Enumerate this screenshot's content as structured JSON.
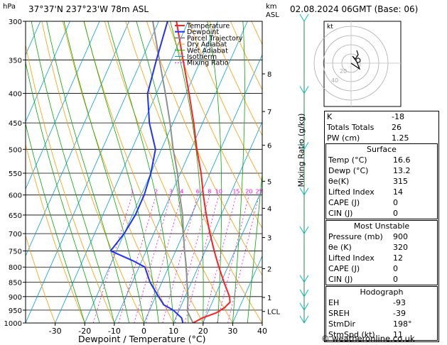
{
  "header": {
    "hpa_unit": "hPa",
    "location": "37°37'N  237°23'W  78m  ASL",
    "km_unit": "km",
    "asl_unit": "ASL",
    "datetime": "02.08.2024  06GMT  (Base: 06)"
  },
  "legend": [
    {
      "label": "Temperature",
      "color": "#ff2020"
    },
    {
      "label": "Dewpoint",
      "color": "#2030ff"
    },
    {
      "label": "Parcel Trajectory",
      "color": "#909090"
    },
    {
      "label": "Dry Adiabat",
      "color": "#ff9900"
    },
    {
      "label": "Wet Adiabat",
      "color": "#00aa00"
    },
    {
      "label": "Isotherm",
      "color": "#00a0e0"
    },
    {
      "label": "Mixing Ratio",
      "color": "#ff00ff"
    }
  ],
  "chart_data": {
    "type": "skew-t",
    "xlabel": "Dewpoint / Temperature (°C)",
    "y2label": "Mixing Ratio (g/kg)",
    "x_ticks": [
      "-30",
      "-20",
      "-10",
      "0",
      "10",
      "20",
      "30",
      "40"
    ],
    "pressure_ticks": [
      "300",
      "350",
      "400",
      "450",
      "500",
      "550",
      "600",
      "650",
      "700",
      "750",
      "800",
      "850",
      "900",
      "950",
      "1000"
    ],
    "height_km_ticks": [
      {
        "label": "8",
        "p": 370
      },
      {
        "label": "7",
        "p": 430
      },
      {
        "label": "6",
        "p": 492
      },
      {
        "label": "5",
        "p": 568
      },
      {
        "label": "4",
        "p": 633
      },
      {
        "label": "3",
        "p": 711
      },
      {
        "label": "2",
        "p": 805
      },
      {
        "label": "1",
        "p": 903
      },
      {
        "label": "LCL",
        "p": 955
      }
    ],
    "mixing_ratio_labels": [
      "1",
      "2",
      "3",
      "4",
      "6",
      "8",
      "10",
      "15",
      "20",
      "25"
    ],
    "temperature": [
      {
        "p": 1000,
        "t": 16.6
      },
      {
        "p": 980,
        "t": 19
      },
      {
        "p": 960,
        "t": 23
      },
      {
        "p": 940,
        "t": 25
      },
      {
        "p": 920,
        "t": 26
      },
      {
        "p": 900,
        "t": 25
      },
      {
        "p": 850,
        "t": 21
      },
      {
        "p": 800,
        "t": 17
      },
      {
        "p": 750,
        "t": 13
      },
      {
        "p": 700,
        "t": 9
      },
      {
        "p": 650,
        "t": 5
      },
      {
        "p": 600,
        "t": 1
      },
      {
        "p": 550,
        "t": -3
      },
      {
        "p": 500,
        "t": -8
      },
      {
        "p": 450,
        "t": -13
      },
      {
        "p": 400,
        "t": -19
      },
      {
        "p": 350,
        "t": -26
      },
      {
        "p": 300,
        "t": -34
      }
    ],
    "dewpoint": [
      {
        "p": 1000,
        "t": 13.2
      },
      {
        "p": 980,
        "t": 12
      },
      {
        "p": 950,
        "t": 8
      },
      {
        "p": 930,
        "t": 4
      },
      {
        "p": 900,
        "t": 1
      },
      {
        "p": 850,
        "t": -4
      },
      {
        "p": 800,
        "t": -8
      },
      {
        "p": 780,
        "t": -13
      },
      {
        "p": 750,
        "t": -22
      },
      {
        "p": 700,
        "t": -20
      },
      {
        "p": 650,
        "t": -19
      },
      {
        "p": 600,
        "t": -19
      },
      {
        "p": 550,
        "t": -20
      },
      {
        "p": 500,
        "t": -22
      },
      {
        "p": 450,
        "t": -28
      },
      {
        "p": 400,
        "t": -33
      },
      {
        "p": 350,
        "t": -35
      },
      {
        "p": 300,
        "t": -37
      }
    ],
    "parcel": [
      {
        "p": 1000,
        "t": 16.6
      },
      {
        "p": 955,
        "t": 13
      },
      {
        "p": 900,
        "t": 11
      },
      {
        "p": 850,
        "t": 8.5
      },
      {
        "p": 800,
        "t": 6
      },
      {
        "p": 750,
        "t": 3
      },
      {
        "p": 700,
        "t": 0
      },
      {
        "p": 650,
        "t": -3
      },
      {
        "p": 600,
        "t": -7
      },
      {
        "p": 550,
        "t": -11
      },
      {
        "p": 500,
        "t": -16
      },
      {
        "p": 450,
        "t": -21
      },
      {
        "p": 400,
        "t": -27
      },
      {
        "p": 350,
        "t": -34
      },
      {
        "p": 300,
        "t": -42
      }
    ]
  },
  "hodograph": {
    "unit_label": "kt",
    "ring_labels": [
      "20",
      "40"
    ]
  },
  "indices": {
    "rows": [
      {
        "label": "K",
        "value": "-18"
      },
      {
        "label": "Totals Totals",
        "value": "26"
      },
      {
        "label": "PW (cm)",
        "value": "1.25"
      }
    ]
  },
  "surface": {
    "title": "Surface",
    "rows": [
      {
        "label": "Temp (°C)",
        "value": "16.6"
      },
      {
        "label": "Dewp (°C)",
        "value": "13.2"
      },
      {
        "label": "θe(K)",
        "value": "315"
      },
      {
        "label": "Lifted Index",
        "value": "14"
      },
      {
        "label": "CAPE (J)",
        "value": "0"
      },
      {
        "label": "CIN (J)",
        "value": "0"
      }
    ]
  },
  "most_unstable": {
    "title": "Most Unstable",
    "rows": [
      {
        "label": "Pressure (mb)",
        "value": "900"
      },
      {
        "label": "θe (K)",
        "value": "320"
      },
      {
        "label": "Lifted Index",
        "value": "12"
      },
      {
        "label": "CAPE (J)",
        "value": "0"
      },
      {
        "label": "CIN (J)",
        "value": "0"
      }
    ]
  },
  "hodograph_table": {
    "title": "Hodograph",
    "rows": [
      {
        "label": "EH",
        "value": "-93"
      },
      {
        "label": "SREH",
        "value": "-39"
      },
      {
        "label": "StmDir",
        "value": "198°"
      },
      {
        "label": "StmSpd (kt)",
        "value": "11"
      }
    ]
  },
  "footer": "© weatheronline.co.uk"
}
